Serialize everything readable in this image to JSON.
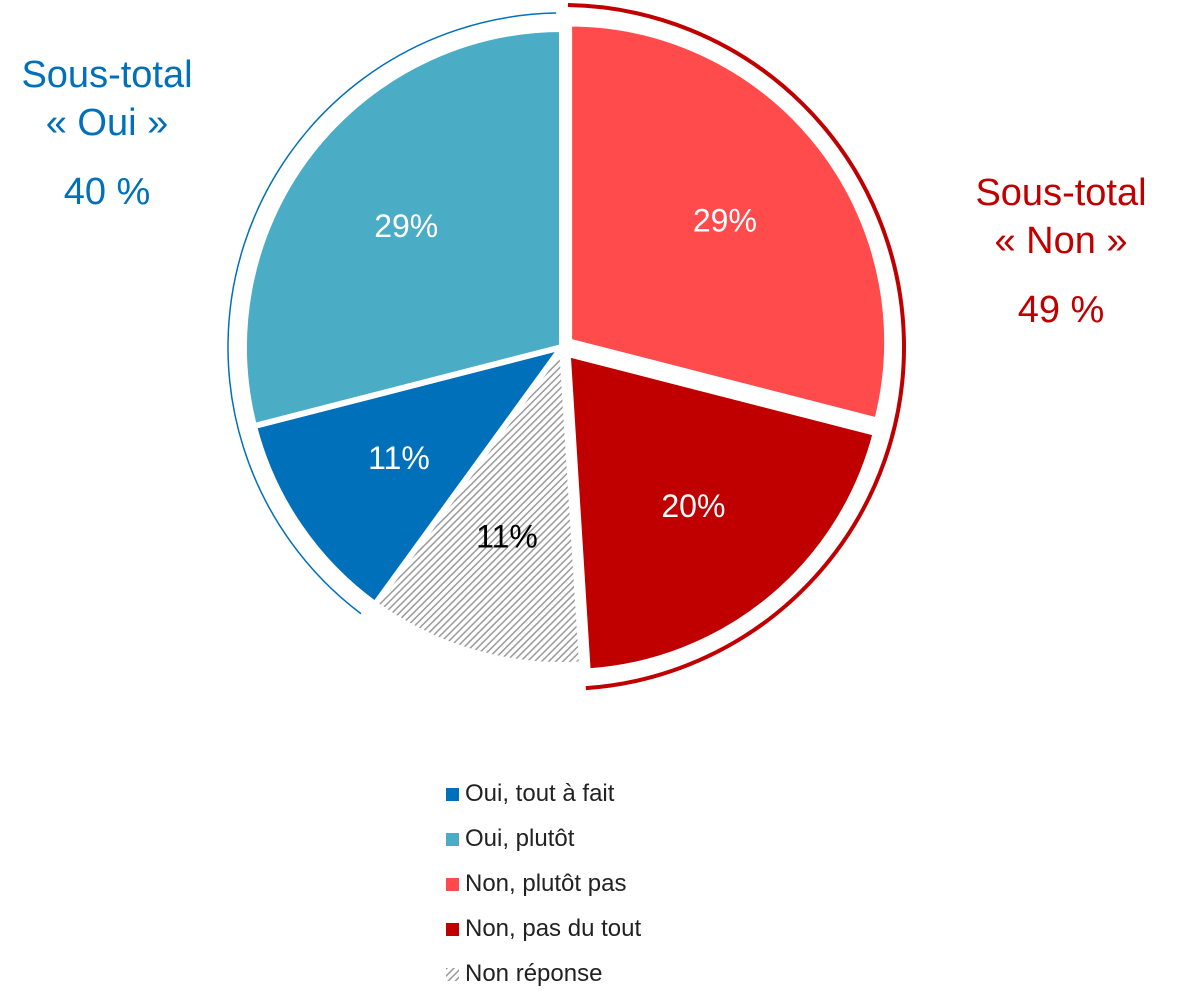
{
  "colors": {
    "oui_accent": "#0070BA",
    "non_accent": "#C00000",
    "oui_tout_a_fait": "#0070BA",
    "oui_plutot": "#4BACC6",
    "non_plutot_pas": "#FF4B4B",
    "non_pas_du_tout": "#C00000",
    "non_reponse": "#A6A6A6"
  },
  "subtotals": {
    "oui": {
      "title": "Sous-total",
      "label": "« Oui »",
      "value": "40 %"
    },
    "non": {
      "title": "Sous-total",
      "label": "« Non »",
      "value": "49 %"
    }
  },
  "chart_data": {
    "type": "pie",
    "slices": [
      {
        "name": "Non, plutôt pas",
        "value": 29,
        "label": "29%",
        "color": "#FF4B4B",
        "label_color": "#ffffff",
        "exploded": true
      },
      {
        "name": "Non, pas du tout",
        "value": 20,
        "label": "20%",
        "color": "#C00000",
        "label_color": "#ffffff",
        "exploded": true
      },
      {
        "name": "Non réponse",
        "value": 11,
        "label": "11%",
        "color": "#A6A6A6",
        "label_color": "#000000",
        "pattern": "diagonal-hatch"
      },
      {
        "name": "Oui, tout à fait",
        "value": 11,
        "label": "11%",
        "color": "#0070BA",
        "label_color": "#ffffff"
      },
      {
        "name": "Oui, plutôt",
        "value": 29,
        "label": "29%",
        "color": "#4BACC6",
        "label_color": "#ffffff"
      }
    ],
    "legend": {
      "position": "bottom",
      "entries": [
        {
          "name": "Oui, tout à fait",
          "color": "#0070BA"
        },
        {
          "name": "Oui, plutôt",
          "color": "#4BACC6"
        },
        {
          "name": "Non, plutôt pas",
          "color": "#FF4B4B"
        },
        {
          "name": "Non, pas du tout",
          "color": "#C00000"
        },
        {
          "name": "Non réponse",
          "color": "#A6A6A6",
          "pattern": "diagonal-hatch"
        }
      ]
    }
  }
}
